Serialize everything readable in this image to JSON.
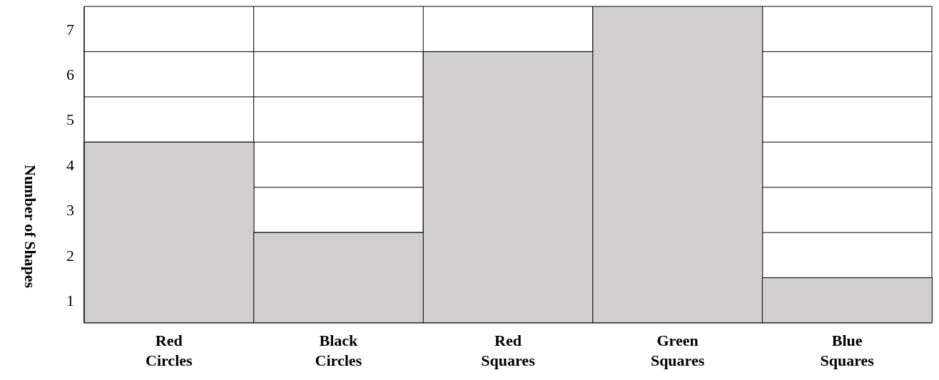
{
  "chart_data": {
    "type": "bar",
    "ylabel": "Number of Shapes",
    "categories": [
      "Red Circles",
      "Black Circles",
      "Red Squares",
      "Green Squares",
      "Blue Squares"
    ],
    "values": [
      4,
      2,
      6,
      7,
      1
    ],
    "color": "#d0cece",
    "ylim": [
      0,
      7
    ],
    "yticks": [
      {
        "value": 0.5,
        "label": "1"
      },
      {
        "value": 1.5,
        "label": "2"
      },
      {
        "value": 2.5,
        "label": "3"
      },
      {
        "value": 3.5,
        "label": "4"
      },
      {
        "value": 4.5,
        "label": "5"
      },
      {
        "value": 5.5,
        "label": "6"
      },
      {
        "value": 6.5,
        "label": "7"
      },
      {
        "value": 1,
        "label": null
      },
      {
        "value": 2,
        "label": null
      },
      {
        "value": 3,
        "label": null
      },
      {
        "value": 4,
        "label": null
      },
      {
        "value": 5,
        "label": null
      },
      {
        "value": 6,
        "label": null
      },
      {
        "value": 7,
        "label": null
      }
    ],
    "grid": true
  }
}
